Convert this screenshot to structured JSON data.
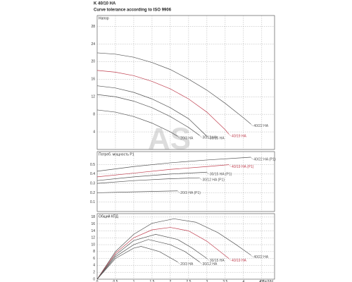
{
  "title": "K 40/10 HA",
  "subtitle": "Curve tolerance according to ISO 9906",
  "watermark": "AS",
  "chart_data": [
    {
      "type": "line",
      "ylabel": "Напор",
      "xlim": [
        0,
        4.85
      ],
      "xticks": [
        0,
        0.5,
        1,
        1.5,
        2,
        2.5,
        3,
        3.5,
        4,
        4.5
      ],
      "ylim": [
        0,
        30.5
      ],
      "yticks": [
        4,
        8,
        12,
        16,
        20,
        24,
        28
      ],
      "grid": true,
      "series": [
        {
          "name": "40/22 HA",
          "color": "#555555",
          "x": [
            0,
            0.5,
            1,
            1.5,
            2,
            2.5,
            3,
            3.5,
            4,
            4.2
          ],
          "values": [
            22,
            21.7,
            21,
            19.8,
            18.2,
            16,
            13.5,
            10.5,
            7.2,
            5.8
          ]
        },
        {
          "name": "40/19 HA",
          "color": "#c04050",
          "x": [
            0,
            0.5,
            1,
            1.5,
            2,
            2.5,
            3,
            3.5,
            3.6
          ],
          "values": [
            18,
            17.6,
            16.8,
            15.5,
            13.8,
            11.5,
            8.5,
            4.5,
            3.5
          ]
        },
        {
          "name": "30/15 HA",
          "color": "#555555",
          "x": [
            0,
            0.5,
            1,
            1.5,
            2,
            2.5,
            3
          ],
          "values": [
            14.5,
            14,
            13,
            11.5,
            9.5,
            7,
            3
          ]
        },
        {
          "name": "30/12 HA",
          "color": "#555555",
          "x": [
            0,
            0.5,
            1,
            1.5,
            2,
            2.5,
            2.8
          ],
          "values": [
            12.5,
            12,
            11,
            9.5,
            7.5,
            5,
            3.2
          ]
        },
        {
          "name": "20/3 HA",
          "color": "#555555",
          "x": [
            0,
            0.5,
            1,
            1.5,
            2,
            2.2
          ],
          "values": [
            9,
            8.5,
            7.5,
            6,
            4,
            3
          ]
        }
      ]
    },
    {
      "type": "line",
      "ylabel": "Потреб. мощность P1",
      "xlim": [
        0,
        4.85
      ],
      "xticks": [
        0,
        0.5,
        1,
        1.5,
        2,
        2.5,
        3,
        3.5,
        4,
        4.5
      ],
      "ylim": [
        0,
        0.64
      ],
      "yticks": [
        0.1,
        0.2,
        0.3,
        0.4,
        0.5
      ],
      "grid": true,
      "series": [
        {
          "name": "40/22 HA (P1)",
          "color": "#555555",
          "x": [
            0,
            1,
            2,
            3,
            4.2
          ],
          "values": [
            0.43,
            0.48,
            0.52,
            0.55,
            0.58
          ]
        },
        {
          "name": "40/19 HA (P1)",
          "color": "#c04050",
          "x": [
            0,
            1,
            2,
            3,
            3.6
          ],
          "values": [
            0.37,
            0.41,
            0.45,
            0.48,
            0.5
          ]
        },
        {
          "name": "30/15 HA (P1)",
          "color": "#555555",
          "x": [
            0,
            1,
            2,
            3
          ],
          "values": [
            0.33,
            0.37,
            0.4,
            0.42
          ]
        },
        {
          "name": "30/12 HA (P1)",
          "color": "#555555",
          "x": [
            0,
            1,
            2,
            2.8
          ],
          "values": [
            0.3,
            0.33,
            0.35,
            0.36
          ]
        },
        {
          "name": "20/3 HA (P1)",
          "color": "#555555",
          "x": [
            0,
            1,
            2.2
          ],
          "values": [
            0.2,
            0.21,
            0.22
          ]
        }
      ]
    },
    {
      "type": "line",
      "ylabel": "Общий КПД",
      "xlabel": "Q [m3/h]",
      "xlim": [
        0,
        4.85
      ],
      "xticks": [
        0,
        0.5,
        1,
        1.5,
        2,
        2.5,
        3,
        3.5,
        4,
        4.5
      ],
      "ylim": [
        0,
        19
      ],
      "yticks": [
        0,
        2,
        4,
        6,
        8,
        10,
        12,
        14,
        16,
        18
      ],
      "grid": true,
      "series": [
        {
          "name": "40/22 HA",
          "color": "#555555",
          "x": [
            0,
            0.5,
            1,
            1.5,
            2.1,
            2.7,
            3.3,
            3.8,
            4.2
          ],
          "values": [
            0,
            8,
            13,
            16.2,
            17.5,
            16.5,
            13.5,
            10,
            7
          ]
        },
        {
          "name": "40/19 HA",
          "color": "#c04050",
          "x": [
            0,
            0.5,
            1,
            1.5,
            2,
            2.5,
            3,
            3.6
          ],
          "values": [
            0,
            7.5,
            12,
            14.3,
            15,
            14,
            11,
            6
          ]
        },
        {
          "name": "30/15 HA",
          "color": "#555555",
          "x": [
            0,
            0.5,
            1,
            1.6,
            2.2,
            2.6,
            3
          ],
          "values": [
            0,
            7,
            11.2,
            13,
            11.5,
            9,
            6
          ]
        },
        {
          "name": "30/12 HA",
          "color": "#555555",
          "x": [
            0,
            0.5,
            1,
            1.4,
            2,
            2.4,
            2.8
          ],
          "values": [
            0,
            6.5,
            10,
            11.5,
            10,
            8,
            5
          ]
        },
        {
          "name": "20/3 HA",
          "color": "#555555",
          "x": [
            0,
            0.5,
            1,
            1.2,
            1.7,
            2.2
          ],
          "values": [
            0,
            6,
            9,
            9.5,
            8,
            5
          ]
        }
      ]
    }
  ]
}
